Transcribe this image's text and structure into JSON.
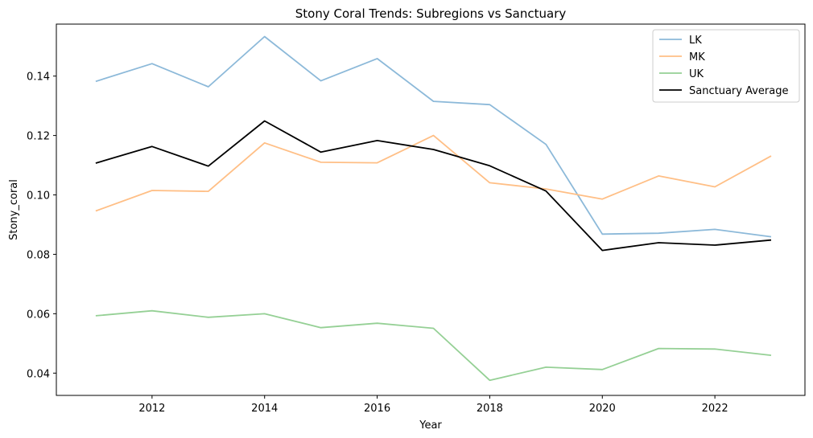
{
  "chart_data": {
    "type": "line",
    "title": "Stony Coral Trends: Subregions vs Sanctuary",
    "xlabel": "Year",
    "ylabel": "Stony_coral",
    "xlim": [
      2010.3,
      2023.6
    ],
    "ylim": [
      0.0325,
      0.1575
    ],
    "xticks": [
      "2012",
      "2014",
      "2016",
      "2018",
      "2020",
      "2022"
    ],
    "xtick_values": [
      2012,
      2014,
      2016,
      2018,
      2020,
      2022
    ],
    "yticks": [
      "0.04",
      "0.06",
      "0.08",
      "0.10",
      "0.12",
      "0.14"
    ],
    "ytick_values": [
      0.04,
      0.06,
      0.08,
      0.1,
      0.12,
      0.14
    ],
    "grid": false,
    "legend_position": "top-right",
    "x": [
      2011,
      2012,
      2013,
      2014,
      2015,
      2016,
      2017,
      2018,
      2019,
      2020,
      2021,
      2022,
      2023
    ],
    "series": [
      {
        "name": "LK",
        "color": "#8cb9d9",
        "values": [
          0.1382,
          0.1442,
          0.1364,
          0.1533,
          0.1384,
          0.1459,
          0.1315,
          0.1304,
          0.117,
          0.0868,
          0.0871,
          0.0884,
          0.0859
        ]
      },
      {
        "name": "MK",
        "color": "#ffbf86",
        "values": [
          0.0946,
          0.1015,
          0.1012,
          0.1175,
          0.111,
          0.1108,
          0.12,
          0.1041,
          0.102,
          0.0986,
          0.1064,
          0.1027,
          0.1131
        ]
      },
      {
        "name": "UK",
        "color": "#95d095",
        "values": [
          0.0593,
          0.061,
          0.0588,
          0.06,
          0.0553,
          0.0568,
          0.0551,
          0.0376,
          0.042,
          0.0412,
          0.0483,
          0.0481,
          0.046
        ]
      },
      {
        "name": "Sanctuary Average",
        "color": "#000000",
        "values": [
          0.1107,
          0.1163,
          0.1097,
          0.1249,
          0.1144,
          0.1183,
          0.1153,
          0.1098,
          0.1013,
          0.0813,
          0.0839,
          0.0831,
          0.0848
        ]
      }
    ]
  }
}
